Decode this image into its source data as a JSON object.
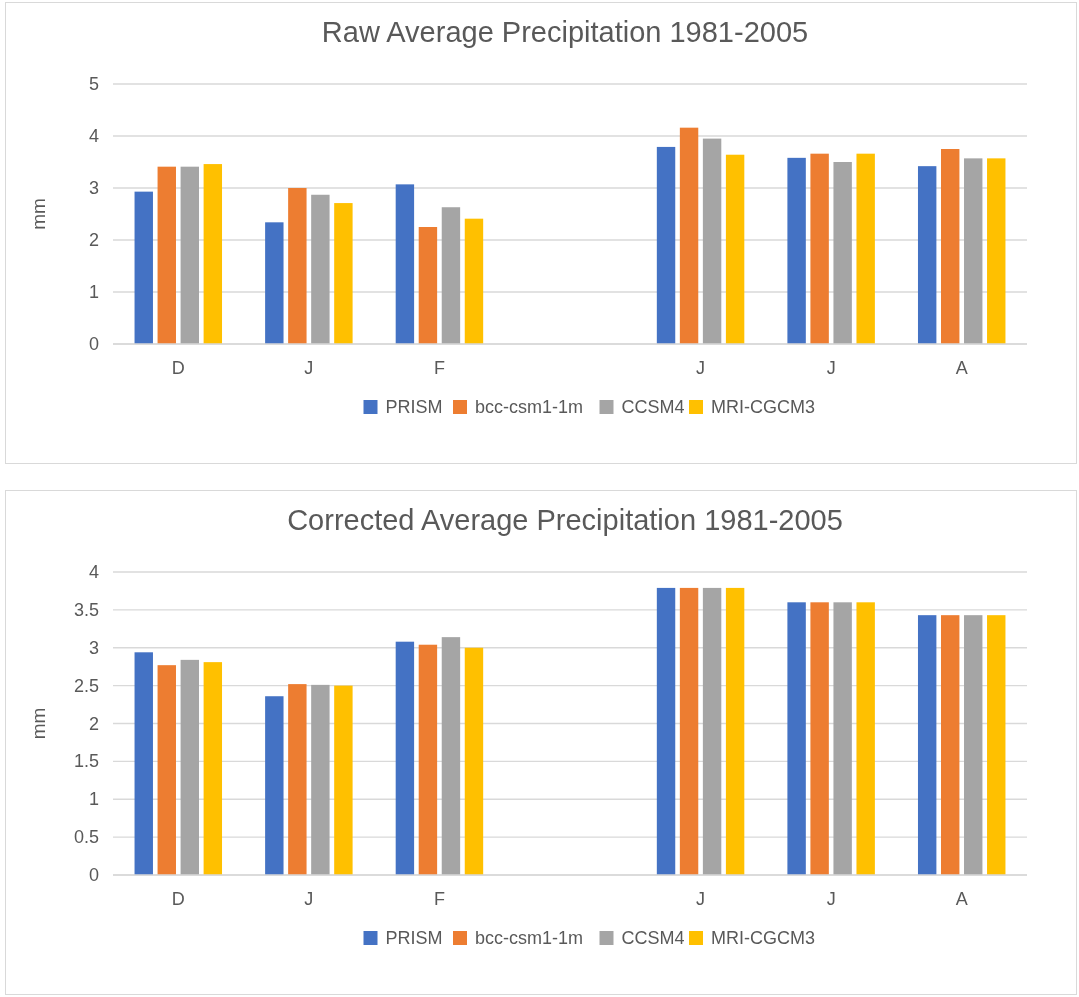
{
  "chart_data": [
    {
      "type": "bar",
      "title": "Raw Average Precipitation 1981-2005",
      "ylabel": "mm",
      "categories": [
        "D",
        "J",
        "F",
        null,
        "J",
        "J",
        "A"
      ],
      "series": [
        {
          "name": "PRISM",
          "color": "#4472c4",
          "values": [
            2.93,
            2.34,
            3.07,
            null,
            3.79,
            3.58,
            3.42
          ]
        },
        {
          "name": "bcc-csm1-1m",
          "color": "#ed7d31",
          "values": [
            3.41,
            3.0,
            2.25,
            null,
            4.16,
            3.66,
            3.75
          ]
        },
        {
          "name": "CCSM4",
          "color": "#a5a5a5",
          "values": [
            3.41,
            2.87,
            2.63,
            null,
            3.95,
            3.5,
            3.57
          ]
        },
        {
          "name": "MRI-CGCM3",
          "color": "#ffc000",
          "values": [
            3.46,
            2.71,
            2.41,
            null,
            3.64,
            3.66,
            3.57
          ]
        }
      ],
      "ylim": [
        0,
        5
      ],
      "yticks": [
        0,
        1,
        2,
        3,
        4,
        5
      ],
      "grid": "y",
      "legend": "bottom"
    },
    {
      "type": "bar",
      "title": "Corrected Average Precipitation 1981-2005",
      "ylabel": "mm",
      "categories": [
        "D",
        "J",
        "F",
        null,
        "J",
        "J",
        "A"
      ],
      "series": [
        {
          "name": "PRISM",
          "color": "#4472c4",
          "values": [
            2.94,
            2.36,
            3.08,
            null,
            3.79,
            3.6,
            3.43
          ]
        },
        {
          "name": "bcc-csm1-1m",
          "color": "#ed7d31",
          "values": [
            2.77,
            2.52,
            3.04,
            null,
            3.79,
            3.6,
            3.43
          ]
        },
        {
          "name": "CCSM4",
          "color": "#a5a5a5",
          "values": [
            2.84,
            2.51,
            3.14,
            null,
            3.79,
            3.6,
            3.43
          ]
        },
        {
          "name": "MRI-CGCM3",
          "color": "#ffc000",
          "values": [
            2.81,
            2.5,
            3.0,
            null,
            3.79,
            3.6,
            3.43
          ]
        }
      ],
      "ylim": [
        0,
        4
      ],
      "yticks": [
        0,
        0.5,
        1,
        1.5,
        2,
        2.5,
        3,
        3.5,
        4
      ],
      "grid": "y",
      "legend": "bottom"
    }
  ]
}
